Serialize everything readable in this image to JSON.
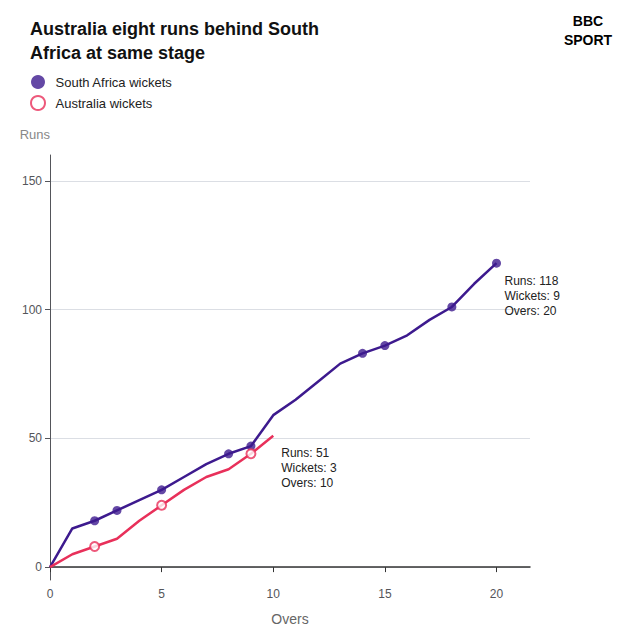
{
  "chart_data": {
    "type": "line",
    "title": "Australia eight runs behind South\nAfrica at same stage",
    "x_label": "Overs",
    "y_label": "Runs",
    "xlim": [
      0,
      21.5
    ],
    "xticks": [
      0,
      5,
      10,
      15,
      20
    ],
    "ylim": [
      -5,
      160
    ],
    "yticks": [
      0,
      50,
      100,
      150
    ],
    "grid": true,
    "legend": "upper left",
    "series": [
      {
        "type": "line",
        "color": "#3d1a8e",
        "x": [
          0,
          1,
          2,
          3,
          4,
          5,
          6,
          7,
          8,
          9,
          10,
          11,
          12,
          13,
          14,
          15,
          16,
          17,
          18,
          19,
          20
        ],
        "values": [
          0,
          15,
          18,
          22,
          26,
          30,
          35,
          40,
          44,
          47,
          59,
          65,
          72,
          79,
          83,
          86,
          90,
          96,
          101,
          110,
          118
        ]
      },
      {
        "type": "scatter",
        "name": "South Africa wickets",
        "color": "#3d1a8e",
        "marker": "circle",
        "x": [
          2,
          3,
          5,
          8,
          9,
          14,
          15,
          18,
          20
        ],
        "values": [
          18,
          22,
          30,
          44,
          47,
          83,
          86,
          101,
          118
        ]
      },
      {
        "type": "line",
        "color": "#e8305a",
        "x": [
          0,
          1,
          2,
          3,
          4,
          5,
          6,
          7,
          8,
          9,
          10
        ],
        "values": [
          0,
          5,
          8,
          11,
          18,
          24,
          30,
          35,
          38,
          44,
          51
        ]
      },
      {
        "type": "scatter",
        "name": "Australia wickets",
        "color": "#e8305a",
        "marker": "open circle",
        "x": [
          2,
          5,
          9
        ],
        "values": [
          8,
          24,
          44
        ]
      }
    ],
    "annotations": [
      {
        "text": "Runs: 118\nWickets: 9\nOvers: 20",
        "x": 20,
        "y": 118
      },
      {
        "text": "Runs: 51\nWickets: 3\nOvers: 10",
        "x": 10,
        "y": 51
      },
      {
        "text": "BBC"
      },
      {
        "text": "SPORT"
      }
    ]
  }
}
